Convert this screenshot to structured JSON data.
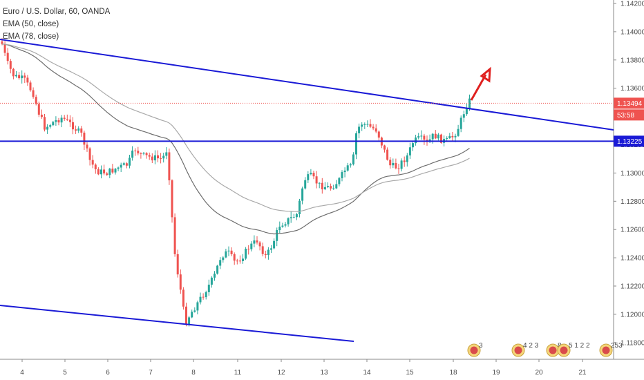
{
  "chart_data": {
    "type": "candlestick",
    "symbol_title": "Euro / U.S. Dollar, 60, OANDA",
    "indicators": [
      {
        "name": "EMA (50, close)",
        "color": "#6d6d6d"
      },
      {
        "name": "EMA (78, close)",
        "color": "#a9a9a9"
      }
    ],
    "ylim": [
      1.1166,
      1.1425
    ],
    "y_ticks": [
      "1.14200",
      "1.14000",
      "1.13800",
      "1.13600",
      "1.13400",
      "1.13200",
      "1.13000",
      "1.12800",
      "1.12600",
      "1.12400",
      "1.12200",
      "1.12000",
      "1.11800"
    ],
    "x_ticks": [
      "4",
      "5",
      "6",
      "7",
      "8",
      "11",
      "12",
      "13",
      "14",
      "15",
      "18",
      "19",
      "20",
      "21"
    ],
    "price_labels": [
      {
        "text": "1.13494",
        "value": 1.13494,
        "color": "#ef5350"
      },
      {
        "text": "53:58",
        "value": 1.134,
        "color": "#ef5350"
      },
      {
        "text": "1.13225",
        "value": 1.13225,
        "color": "#1a1ad6"
      }
    ],
    "event_badges": [
      "3",
      "4 2 3",
      "8",
      "5 1 2 2",
      "253"
    ],
    "colors": {
      "up": "#26a69a",
      "down": "#ef5350",
      "trendline": "#1a1ad6",
      "arrow": "#e0201f"
    }
  }
}
